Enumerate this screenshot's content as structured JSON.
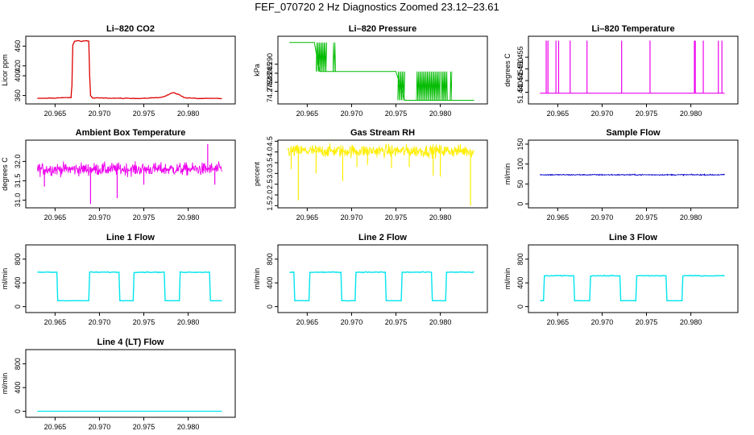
{
  "page": {
    "title": "FEF_070720  2 Hz Diagnostics Zoomed 23.12–23.61"
  },
  "colors": {
    "axis": "#000000",
    "background": "#ffffff"
  },
  "chart_data": [
    {
      "id": "co2",
      "type": "line",
      "title": "Li–820 CO2",
      "ylabel": "Licor ppm",
      "xlabel": "",
      "color": "#dd0000",
      "xlim": [
        20.9617,
        20.9853
      ],
      "ylim": [
        343,
        480
      ],
      "xticks": [
        "20.965",
        "20.970",
        "20.975",
        "20.980"
      ],
      "yticks": [
        "360",
        "400",
        "420",
        "460"
      ],
      "x": [
        20.963,
        20.965,
        20.9668,
        20.9669,
        20.967,
        20.9672,
        20.9675,
        20.968,
        20.9685,
        20.9688,
        20.9689,
        20.969,
        20.9692,
        20.97,
        20.974,
        20.977,
        20.9778,
        20.9783,
        20.979,
        20.9795,
        20.98,
        20.981,
        20.9838
      ],
      "series": [
        {
          "name": "CO2",
          "values": [
            354,
            355,
            356,
            380,
            462,
            470,
            471,
            470,
            471,
            470,
            400,
            360,
            355,
            355,
            354,
            356,
            362,
            366,
            362,
            356,
            355,
            354,
            354
          ]
        }
      ]
    },
    {
      "id": "pressure",
      "type": "line",
      "title": "Li–820 Pressure",
      "ylabel": "kPa",
      "xlabel": "",
      "color": "#00bb00",
      "xlim": [
        20.9617,
        20.9853
      ],
      "ylim": [
        74.268,
        74.3055
      ],
      "xticks": [
        "20.965",
        "20.970",
        "20.975",
        "20.980"
      ],
      "yticks": [
        "74.275",
        "74.28",
        "74.285",
        "74.290"
      ],
      "x": [
        20.963,
        20.9658,
        20.9664,
        20.9684,
        20.969,
        20.9715,
        20.975,
        20.976,
        20.9773,
        20.981,
        20.9825,
        20.9838
      ],
      "series": [
        {
          "name": "Pressure",
          "values": [
            74.302,
            74.302,
            74.286,
            74.286,
            74.286,
            74.286,
            74.286,
            74.27,
            74.27,
            74.27,
            74.27,
            74.27
          ]
        }
      ],
      "noise_bands": [
        [
          20.966,
          20.9672
        ],
        [
          20.9679,
          20.9682
        ],
        [
          20.9752,
          20.976
        ],
        [
          20.9773,
          20.98
        ],
        [
          20.9801,
          20.9808
        ],
        [
          20.9811,
          20.9813
        ]
      ]
    },
    {
      "id": "temperature",
      "type": "line",
      "title": "Li–820 Temperature",
      "ylabel": "degrees C",
      "xlabel": "",
      "color": "#ee00ee",
      "xlim": [
        20.9617,
        20.9853
      ],
      "ylim": [
        51.435,
        51.464
      ],
      "xticks": [
        "20.965",
        "20.970",
        "20.975",
        "20.980"
      ],
      "yticks": [
        "51.440",
        "51.445",
        "51.450",
        "51.455"
      ],
      "baseline": 51.4396,
      "spike_top": 51.4621,
      "spikes": [
        20.9637,
        20.9639,
        20.9648,
        20.9651,
        20.9664,
        20.9683,
        20.9722,
        20.9754,
        20.9804,
        20.9805,
        20.9814,
        20.9831,
        20.9835
      ]
    },
    {
      "id": "ambient",
      "type": "line",
      "title": "Ambient Box Temperature",
      "ylabel": "degrees C",
      "xlabel": "",
      "color": "#ee00ee",
      "xlim": [
        20.9617,
        20.9853
      ],
      "ylim": [
        30.8,
        32.55
      ],
      "xticks": [
        "20.965",
        "20.970",
        "20.975",
        "20.980"
      ],
      "yticks": [
        "31.0",
        "31.5",
        "32.0"
      ],
      "mean": 31.8,
      "spread": 0.14,
      "noise_x": [
        20.963,
        20.9838
      ],
      "spikes_x": [
        20.9638,
        20.969,
        20.972,
        20.975,
        20.9822,
        20.983
      ],
      "spikes_y": [
        31.35,
        30.9,
        31.05,
        31.4,
        32.45,
        31.4
      ]
    },
    {
      "id": "rh",
      "type": "line",
      "title": "Gas Stream RH",
      "ylabel": "percent",
      "xlabel": "",
      "color": "#ffee00",
      "xlim": [
        20.9617,
        20.9853
      ],
      "ylim": [
        1.4,
        4.55
      ],
      "xticks": [
        "20.965",
        "20.970",
        "20.975",
        "20.980"
      ],
      "yticks": [
        "1.5",
        "2.0",
        "2.5",
        "3.0",
        "3.5",
        "4.0",
        "4.5"
      ],
      "mean": 4.05,
      "spread": 0.25,
      "noise_x": [
        20.9628,
        20.9838
      ],
      "spikes_x": [
        20.9632,
        20.964,
        20.966,
        20.969,
        20.9706,
        20.9718,
        20.9745,
        20.9765,
        20.9792,
        20.98,
        20.9834
      ],
      "spikes_y": [
        3.2,
        1.75,
        3.0,
        2.65,
        3.3,
        3.4,
        3.25,
        3.3,
        2.9,
        2.85,
        1.5
      ]
    },
    {
      "id": "sample",
      "type": "line",
      "title": "Sample Flow",
      "ylabel": "ml/min",
      "xlabel": "",
      "color": "#0000cc",
      "xlim": [
        20.9617,
        20.9853
      ],
      "ylim": [
        -10,
        160
      ],
      "xticks": [
        "20.965",
        "20.970",
        "20.975",
        "20.980"
      ],
      "yticks": [
        "0",
        "50",
        "100",
        "150"
      ],
      "mean": 73,
      "spread": 1.2,
      "noise_x": [
        20.963,
        20.9838
      ]
    },
    {
      "id": "line1",
      "type": "line",
      "title": "Line 1 Flow",
      "ylabel": "ml/min",
      "xlabel": "",
      "color": "#00e5ee",
      "xlim": [
        20.9617,
        20.9853
      ],
      "ylim": [
        -100,
        1040
      ],
      "xticks": [
        "20.965",
        "20.970",
        "20.975",
        "20.980"
      ],
      "yticks": [
        "0",
        "400",
        "800"
      ],
      "high": 580,
      "low": 100,
      "noise_x": [
        20.963,
        20.9838
      ],
      "steps_x": [
        20.963,
        20.9652,
        20.9653,
        20.9688,
        20.9689,
        20.9722,
        20.9723,
        20.9738,
        20.9739,
        20.9773,
        20.9774,
        20.979,
        20.9791,
        20.9824,
        20.9825,
        20.9838
      ],
      "steps_y": [
        580,
        580,
        100,
        100,
        580,
        580,
        100,
        100,
        580,
        580,
        100,
        100,
        580,
        580,
        100,
        100
      ]
    },
    {
      "id": "line2",
      "type": "line",
      "title": "Line 2 Flow",
      "ylabel": "ml/min",
      "xlabel": "",
      "color": "#00e5ee",
      "xlim": [
        20.9617,
        20.9853
      ],
      "ylim": [
        -100,
        1040
      ],
      "xticks": [
        "20.965",
        "20.970",
        "20.975",
        "20.980"
      ],
      "yticks": [
        "0",
        "400",
        "800"
      ],
      "high": 580,
      "low": 100,
      "noise_x": [
        20.963,
        20.9838
      ],
      "steps_x": [
        20.963,
        20.9635,
        20.9636,
        20.9652,
        20.9653,
        20.9688,
        20.9689,
        20.9704,
        20.9705,
        20.9738,
        20.9739,
        20.9756,
        20.9757,
        20.979,
        20.9791,
        20.9806,
        20.9807,
        20.9838
      ],
      "steps_y": [
        580,
        580,
        100,
        100,
        580,
        580,
        100,
        100,
        580,
        580,
        100,
        100,
        580,
        580,
        100,
        100,
        580,
        580
      ]
    },
    {
      "id": "line3",
      "type": "line",
      "title": "Line 3 Flow",
      "ylabel": "ml/min",
      "xlabel": "",
      "color": "#00e5ee",
      "xlim": [
        20.9617,
        20.9853
      ],
      "ylim": [
        -100,
        1040
      ],
      "xticks": [
        "20.965",
        "20.970",
        "20.975",
        "20.980"
      ],
      "yticks": [
        "0",
        "400",
        "800"
      ],
      "high": 520,
      "low": 100,
      "noise_x": [
        20.963,
        20.9838
      ],
      "steps_x": [
        20.963,
        20.9634,
        20.9635,
        20.9668,
        20.9669,
        20.9686,
        20.9687,
        20.972,
        20.9721,
        20.9738,
        20.9739,
        20.9772,
        20.9773,
        20.979,
        20.9791,
        20.9838
      ],
      "steps_y": [
        100,
        100,
        520,
        520,
        100,
        100,
        520,
        520,
        100,
        100,
        520,
        520,
        100,
        100,
        520,
        520
      ]
    },
    {
      "id": "line4",
      "type": "line",
      "title": "Line 4 (LT) Flow",
      "ylabel": "ml/min",
      "xlabel": "",
      "color": "#00e5ee",
      "xlim": [
        20.9617,
        20.9853
      ],
      "ylim": [
        -100,
        1040
      ],
      "xticks": [
        "20.965",
        "20.970",
        "20.975",
        "20.980"
      ],
      "yticks": [
        "0",
        "400",
        "800"
      ],
      "x": [
        20.963,
        20.9838
      ],
      "series": [
        {
          "name": "Line 4",
          "values": [
            2,
            2
          ]
        }
      ]
    }
  ]
}
